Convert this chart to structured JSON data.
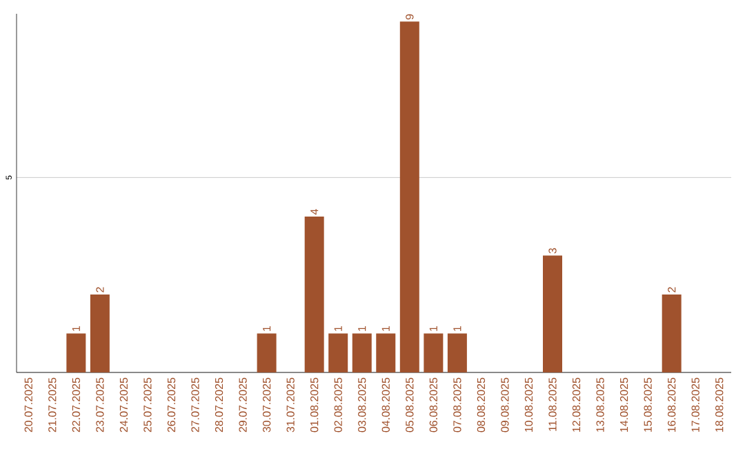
{
  "chart_data": {
    "type": "bar",
    "categories": [
      "20.07.2025",
      "21.07.2025",
      "22.07.2025",
      "23.07.2025",
      "24.07.2025",
      "25.07.2025",
      "26.07.2025",
      "27.07.2025",
      "28.07.2025",
      "29.07.2025",
      "30.07.2025",
      "31.07.2025",
      "01.08.2025",
      "02.08.2025",
      "03.08.2025",
      "04.08.2025",
      "05.08.2025",
      "06.08.2025",
      "07.08.2025",
      "08.08.2025",
      "09.08.2025",
      "10.08.2025",
      "11.08.2025",
      "12.08.2025",
      "13.08.2025",
      "14.08.2025",
      "15.08.2025",
      "16.08.2025",
      "17.08.2025",
      "18.08.2025"
    ],
    "values": [
      0,
      0,
      1,
      2,
      0,
      0,
      0,
      0,
      0,
      0,
      1,
      0,
      4,
      1,
      1,
      1,
      9,
      1,
      1,
      0,
      0,
      0,
      3,
      0,
      0,
      0,
      0,
      2,
      0,
      0
    ],
    "value_labels": [
      null,
      null,
      "1",
      "2",
      null,
      null,
      null,
      null,
      null,
      null,
      "1",
      null,
      "4",
      "1",
      "1",
      "1",
      "9",
      "1",
      "1",
      null,
      null,
      null,
      "3",
      null,
      null,
      null,
      null,
      "2",
      null,
      null
    ],
    "color": "#a0522d",
    "ylim": [
      0,
      9.2
    ],
    "yticks": [
      {
        "value": 0,
        "label": null
      },
      5
    ],
    "grid": "y"
  }
}
